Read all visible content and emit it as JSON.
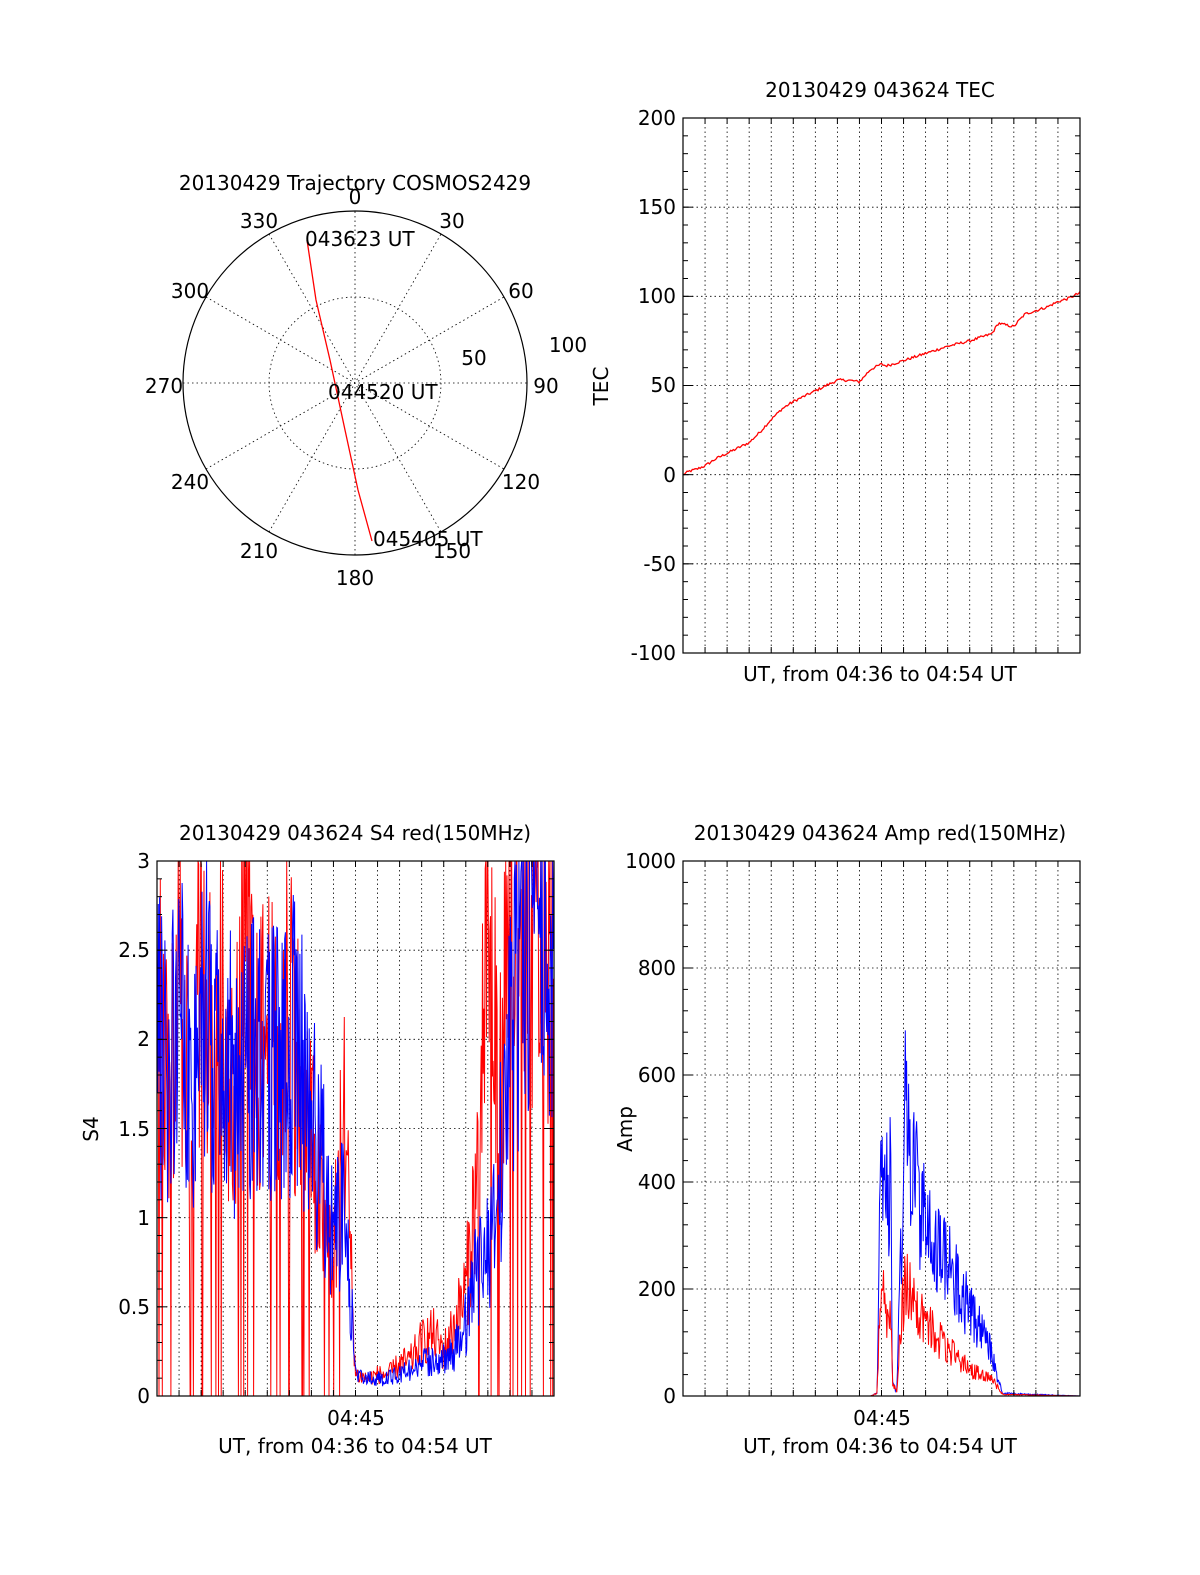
{
  "colors": {
    "red": "#ff0000",
    "blue": "#0000ff",
    "axes": "#000000"
  },
  "polar": {
    "title": "20130429 Trajectory COSMOS2429",
    "azimuth_labels": [
      "0",
      "30",
      "60",
      "90",
      "120",
      "150",
      "180",
      "210",
      "240",
      "270",
      "300",
      "330"
    ],
    "radial_labels": [
      "50",
      "100"
    ],
    "trajectory_labels": [
      "043623 UT",
      "044520 UT",
      "045405 UT"
    ]
  },
  "chart_data": [
    {
      "type": "line",
      "title": "20130429 043624 TEC",
      "xlabel": "UT, from 04:36 to 04:54 UT",
      "ylabel": "TEC",
      "ylim": [
        -100,
        200
      ],
      "yticks": [
        "200",
        "150",
        "100",
        "50",
        "0",
        "-50",
        "-100"
      ],
      "xlim": [
        0,
        18
      ],
      "series": [
        {
          "color": "#ff0000",
          "x": [
            0,
            0.3,
            0.6,
            1.0,
            1.5,
            2.0,
            2.5,
            3.0,
            3.5,
            4.0,
            4.5,
            5.0,
            5.5,
            6.0,
            6.5,
            7.0,
            7.5,
            8.0,
            8.5,
            9.0,
            9.2,
            9.5,
            10.0,
            11.0,
            12.0,
            13.0,
            14.0,
            14.3,
            14.6,
            15.0,
            15.2,
            15.5,
            16.0,
            16.5,
            17.0,
            17.5,
            18.0
          ],
          "y": [
            0,
            2,
            3,
            5,
            9,
            12,
            15,
            18,
            24,
            31,
            37,
            41,
            44,
            47,
            50,
            53,
            53,
            52,
            59,
            62,
            61,
            62,
            64,
            68,
            72,
            75,
            79,
            85,
            84,
            83,
            86,
            90,
            92,
            94,
            97,
            99,
            102
          ]
        }
      ]
    },
    {
      "type": "line",
      "title": "20130429 043624 S4 red(150MHz)",
      "xlabel": "UT, from 04:36 to 04:54 UT",
      "ylabel": "S4",
      "ylim": [
        0,
        3
      ],
      "yticks": [
        "3",
        "2.5",
        "2",
        "1.5",
        "1",
        "0.5",
        "0"
      ],
      "xlim": [
        0,
        18
      ],
      "xticks": [
        {
          "x": 9,
          "label": "04:45"
        }
      ],
      "series": [
        {
          "color": "#ff0000",
          "x": [
            0,
            0.5,
            1.0,
            1.5,
            2.0,
            2.5,
            3.0,
            3.5,
            4.0,
            4.5,
            5.0,
            5.5,
            6.0,
            6.5,
            7.0,
            7.5,
            8.0,
            8.5,
            9.0,
            9.5,
            10.0,
            10.5,
            11.0,
            11.5,
            12.0,
            12.5,
            13.0,
            13.5,
            14.0,
            14.5,
            15.0,
            15.5,
            16.0,
            16.5,
            17.0,
            17.5,
            18.0
          ],
          "y": [
            2.3,
            1.6,
            2.4,
            1.5,
            2.5,
            1.9,
            2.2,
            1.6,
            2.6,
            1.8,
            2.1,
            1.7,
            2.4,
            1.7,
            1.4,
            1.0,
            0.8,
            1.6,
            0.12,
            0.1,
            0.12,
            0.12,
            0.18,
            0.2,
            0.3,
            0.35,
            0.25,
            0.4,
            0.6,
            1.2,
            2.8,
            1.5,
            2.9,
            2.2,
            2.7,
            2.5,
            2.6
          ]
        },
        {
          "color": "#0000ff",
          "x": [
            0,
            0.5,
            1.0,
            1.5,
            2.0,
            2.5,
            3.0,
            3.5,
            4.0,
            4.5,
            5.0,
            5.5,
            6.0,
            6.5,
            7.0,
            7.5,
            8.0,
            8.5,
            9.0,
            9.5,
            10.0,
            10.5,
            11.0,
            11.5,
            12.0,
            12.5,
            13.0,
            13.5,
            14.0,
            14.5,
            15.0,
            15.5,
            16.0,
            16.5,
            17.0,
            17.5,
            18.0
          ],
          "y": [
            2.0,
            1.8,
            2.1,
            1.7,
            2.2,
            2.0,
            1.9,
            1.8,
            2.0,
            1.9,
            1.8,
            1.9,
            2.0,
            1.9,
            1.6,
            1.3,
            0.9,
            1.1,
            0.12,
            0.1,
            0.1,
            0.1,
            0.12,
            0.15,
            0.18,
            0.2,
            0.2,
            0.25,
            0.4,
            0.7,
            0.8,
            1.2,
            2.0,
            2.5,
            2.8,
            2.6,
            2.7
          ]
        }
      ]
    },
    {
      "type": "line",
      "title": "20130429 043624 Amp red(150MHz)",
      "xlabel": "UT, from 04:36 to 04:54 UT",
      "ylabel": "Amp",
      "ylim": [
        0,
        1000
      ],
      "yticks": [
        "1000",
        "800",
        "600",
        "400",
        "200",
        "0"
      ],
      "xlim": [
        0,
        18
      ],
      "xticks": [
        {
          "x": 9,
          "label": "04:45"
        }
      ],
      "series": [
        {
          "color": "#0000ff",
          "x": [
            0,
            8.5,
            8.8,
            8.9,
            9.0,
            9.2,
            9.4,
            9.5,
            9.7,
            9.9,
            10.1,
            10.3,
            10.6,
            11.0,
            11.5,
            12.0,
            12.5,
            13.0,
            13.5,
            14.0,
            14.2,
            14.5,
            18.0
          ],
          "y": [
            0,
            0,
            5,
            300,
            440,
            360,
            420,
            20,
            10,
            300,
            540,
            420,
            380,
            320,
            280,
            250,
            200,
            160,
            120,
            80,
            40,
            5,
            0
          ]
        },
        {
          "color": "#ff0000",
          "x": [
            0,
            8.5,
            8.8,
            8.9,
            9.0,
            9.2,
            9.4,
            9.5,
            9.7,
            9.9,
            10.1,
            10.3,
            10.6,
            11.0,
            11.5,
            12.0,
            12.5,
            13.0,
            13.5,
            14.0,
            14.2,
            14.5,
            18.0
          ],
          "y": [
            0,
            0,
            5,
            150,
            190,
            160,
            180,
            20,
            10,
            160,
            210,
            190,
            170,
            140,
            110,
            90,
            70,
            50,
            40,
            30,
            20,
            3,
            0
          ]
        }
      ]
    }
  ]
}
